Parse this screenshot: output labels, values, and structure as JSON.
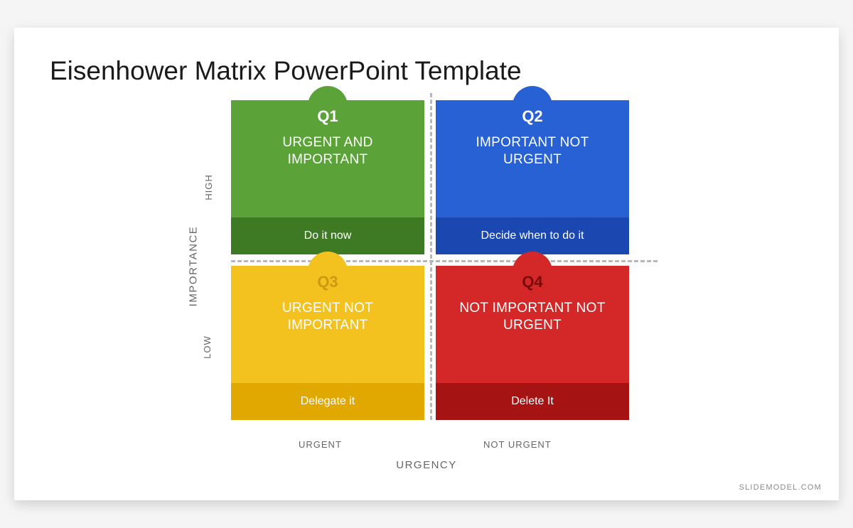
{
  "slide": {
    "title": "Eisenhower Matrix PowerPoint Template",
    "background_color": "#ffffff",
    "title_color": "#1a1a1a",
    "title_fontsize": 37
  },
  "axes": {
    "y_label": "IMPORTANCE",
    "y_high": "HIGH",
    "y_low": "LOW",
    "x_label": "URGENCY",
    "x_left": "URGENT",
    "x_right": "NOT URGENT",
    "label_color": "#666666",
    "divider_color": "#b8b8b8"
  },
  "matrix": {
    "type": "infographic",
    "layout": "2x2",
    "gap": 16,
    "quadrants": [
      {
        "code": "Q1",
        "title": "URGENT AND IMPORTANT",
        "action": "Do it now",
        "color_main": "#5ba339",
        "color_dark": "#3e7a23",
        "code_color": "#ffffff",
        "text_color": "#ffffff"
      },
      {
        "code": "Q2",
        "title": "IMPORTANT NOT URGENT",
        "action": "Decide when to do it",
        "color_main": "#2861d4",
        "color_dark": "#1a47b0",
        "code_color": "#ffffff",
        "text_color": "#ffffff"
      },
      {
        "code": "Q3",
        "title": "URGENT NOT IMPORTANT",
        "action": "Delegate it",
        "color_main": "#f3c21f",
        "color_dark": "#e0a800",
        "code_color": "#c99a12",
        "text_color": "#ffffff"
      },
      {
        "code": "Q4",
        "title": "NOT IMPORTANT NOT URGENT",
        "action": "Delete It",
        "color_main": "#d42727",
        "color_dark": "#a61313",
        "code_color": "#7a0b0b",
        "text_color": "#ffffff"
      }
    ]
  },
  "footer": {
    "text": "SLIDEMODEL.COM",
    "color": "#8a8a8a"
  }
}
